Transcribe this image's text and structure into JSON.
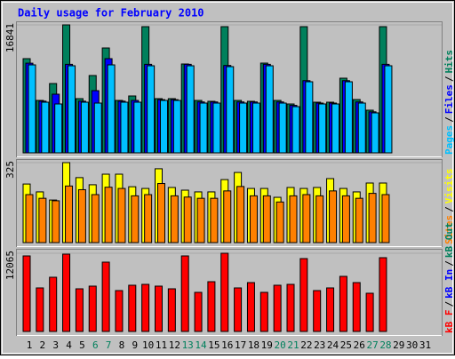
{
  "chart_data": {
    "type": "bar",
    "title": "Daily usage for February 2010",
    "categories": [
      "1",
      "2",
      "3",
      "4",
      "5",
      "6",
      "7",
      "8",
      "9",
      "10",
      "11",
      "12",
      "13",
      "14",
      "15",
      "16",
      "17",
      "18",
      "19",
      "20",
      "21",
      "22",
      "23",
      "24",
      "25",
      "26",
      "27",
      "28",
      "29",
      "30",
      "31"
    ],
    "category_colors": [
      "#000000",
      "#000000",
      "#000000",
      "#000000",
      "#000000",
      "#00805c",
      "#00805c",
      "#000000",
      "#000000",
      "#000000",
      "#000000",
      "#000000",
      "#00805c",
      "#00805c",
      "#000000",
      "#000000",
      "#000000",
      "#000000",
      "#000000",
      "#00805c",
      "#00805c",
      "#000000",
      "#000000",
      "#000000",
      "#000000",
      "#000000",
      "#00805c",
      "#00805c",
      "#000000",
      "#000000",
      "#000000"
    ],
    "legend_separator": "/",
    "panels": [
      {
        "ylim": [
          0,
          16841
        ],
        "legend": [
          {
            "name": "Pages",
            "color": "#00c0ff"
          },
          {
            "name": "Files",
            "color": "#0000ff"
          },
          {
            "name": "Hits",
            "color": "#00805c"
          }
        ],
        "series": [
          {
            "name": "Hits",
            "color": "#00805c",
            "values": [
              12397,
              6900,
              9122,
              16841,
              7134,
              10175,
              13800,
              6900,
              7485,
              16607,
              7134,
              7134,
              11695,
              6900,
              6783,
              16607,
              6900,
              6783,
              11812,
              6900,
              6432,
              16607,
              6666,
              6666,
              9824,
              7017,
              5614,
              16607,
              null,
              null,
              null
            ]
          },
          {
            "name": "Files",
            "color": "#0000ff",
            "values": [
              11800,
              6800,
              7719,
              11650,
              6800,
              8187,
              12397,
              6800,
              6900,
              11650,
              7000,
              7000,
              11650,
              6700,
              6700,
              11500,
              6700,
              6700,
              11650,
              6700,
              6250,
              9500,
              6550,
              6550,
              9500,
              6700,
              5400,
              11650,
              null,
              null,
              null
            ]
          },
          {
            "name": "Pages",
            "color": "#00c0ff",
            "values": [
              11578,
              6666,
              6432,
              11461,
              6666,
              6549,
              11578,
              6666,
              6666,
              11461,
              6900,
              6900,
              11461,
              6549,
              6549,
              11344,
              6549,
              6549,
              11461,
              6549,
              6081,
              9356,
              6432,
              6432,
              9356,
              6549,
              5263,
              11461,
              null,
              null,
              null
            ]
          }
        ]
      },
      {
        "ylim": [
          0,
          325
        ],
        "legend": [
          {
            "name": "Sites",
            "color": "#ff8000"
          },
          {
            "name": "Visits",
            "color": "#ffff00"
          }
        ],
        "series": [
          {
            "name": "Visits",
            "color": "#ffff00",
            "values": [
              238,
              206,
              173,
              325,
              264,
              235,
              278,
              278,
              227,
              220,
              300,
              224,
              213,
              206,
              206,
              256,
              285,
              220,
              220,
              184,
              224,
              220,
              224,
              260,
              220,
              206,
              242,
              242,
              null,
              null,
              null
            ]
          },
          {
            "name": "Sites",
            "color": "#ff8000",
            "values": [
              195,
              180,
              170,
              230,
              215,
              195,
              225,
              220,
              190,
              195,
              240,
              190,
              185,
              180,
              180,
              210,
              228,
              190,
              190,
              165,
              190,
              195,
              190,
              210,
              190,
              180,
              200,
              195,
              null,
              null,
              null
            ]
          }
        ]
      },
      {
        "ylim": [
          0,
          12065
        ],
        "legend": [
          {
            "name": "kB F",
            "color": "#ff0000"
          },
          {
            "name": "kB In",
            "color": "#0000ff"
          },
          {
            "name": "kB Out",
            "color": "#00805c"
          }
        ],
        "series": [
          {
            "name": "kB F",
            "color": "#ff0000",
            "values": [
              11654,
              6718,
              8363,
              11928,
              6581,
              6992,
              10694,
              6307,
              7129,
              7266,
              6992,
              6581,
              11654,
              6033,
              7677,
              12065,
              6718,
              7540,
              6033,
              7129,
              7266,
              11243,
              6307,
              6718,
              8500,
              7540,
              5895,
              11380,
              null,
              null,
              null
            ]
          }
        ]
      }
    ]
  }
}
